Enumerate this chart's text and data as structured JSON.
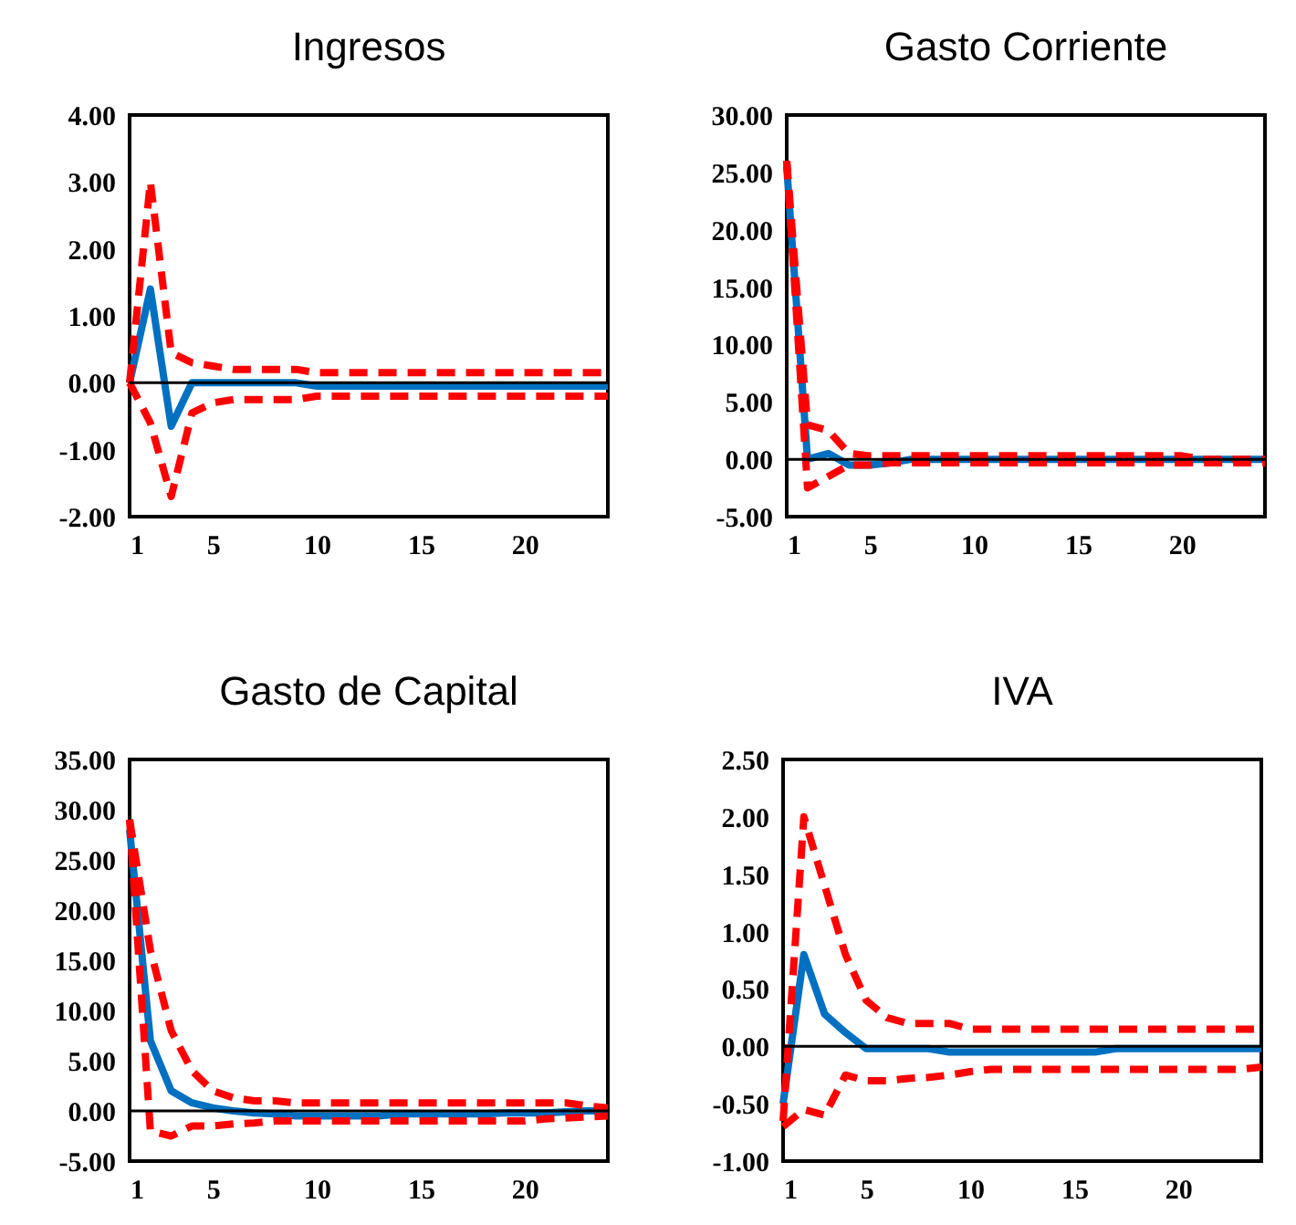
{
  "chart_data": [
    {
      "type": "line",
      "title": "Ingresos",
      "x": [
        1,
        2,
        3,
        4,
        5,
        6,
        7,
        8,
        9,
        10,
        11,
        12,
        13,
        14,
        15,
        16,
        17,
        18,
        19,
        20,
        21,
        22,
        23,
        24
      ],
      "xlim": [
        1,
        24
      ],
      "xticks": [
        1,
        5,
        10,
        15,
        20
      ],
      "ylim": [
        -2,
        4
      ],
      "yticks": [
        {
          "value": -2,
          "label": "-2.00"
        },
        {
          "value": -1,
          "label": "-1.00"
        },
        {
          "value": 0,
          "label": "0.00"
        },
        {
          "value": 1,
          "label": "1.00"
        },
        {
          "value": 2,
          "label": "2.00"
        },
        {
          "value": 3,
          "label": "3.00"
        },
        {
          "value": 4,
          "label": "4.00"
        }
      ],
      "series": [
        {
          "color": "#0070c0",
          "line_style": "solid",
          "values": [
            0,
            1.4,
            -0.65,
            0,
            0,
            0,
            0,
            0,
            0,
            -0.05,
            -0.05,
            -0.05,
            -0.05,
            -0.05,
            -0.05,
            -0.05,
            -0.05,
            -0.05,
            -0.05,
            -0.05,
            -0.05,
            -0.05,
            -0.05,
            -0.05
          ]
        },
        {
          "color": "#ff0000",
          "line_style": "dashed",
          "values": [
            0,
            3,
            0.45,
            0.3,
            0.25,
            0.2,
            0.2,
            0.2,
            0.2,
            0.15,
            0.15,
            0.15,
            0.15,
            0.15,
            0.15,
            0.15,
            0.15,
            0.15,
            0.15,
            0.15,
            0.15,
            0.15,
            0.15,
            0.15
          ]
        },
        {
          "color": "#ff0000",
          "line_style": "dashed",
          "values": [
            0,
            -0.6,
            -1.7,
            -0.45,
            -0.3,
            -0.25,
            -0.25,
            -0.25,
            -0.25,
            -0.2,
            -0.2,
            -0.2,
            -0.2,
            -0.2,
            -0.2,
            -0.2,
            -0.2,
            -0.2,
            -0.2,
            -0.2,
            -0.2,
            -0.2,
            -0.2,
            -0.2
          ]
        }
      ],
      "ref_lines": [
        {
          "axis": "y",
          "value": 0,
          "color": "#000000"
        }
      ]
    },
    {
      "type": "line",
      "title": "Gasto Corriente",
      "x": [
        1,
        2,
        3,
        4,
        5,
        6,
        7,
        8,
        9,
        10,
        11,
        12,
        13,
        14,
        15,
        16,
        17,
        18,
        19,
        20,
        21,
        22,
        23,
        24
      ],
      "xlim": [
        1,
        24
      ],
      "xticks": [
        1,
        5,
        10,
        15,
        20
      ],
      "ylim": [
        -5,
        30
      ],
      "yticks": [
        {
          "value": -5,
          "label": "-5.00"
        },
        {
          "value": 0,
          "label": "0.00"
        },
        {
          "value": 5,
          "label": "5.00"
        },
        {
          "value": 10,
          "label": "10.00"
        },
        {
          "value": 15,
          "label": "15.00"
        },
        {
          "value": 20,
          "label": "20.00"
        },
        {
          "value": 25,
          "label": "25.00"
        },
        {
          "value": 30,
          "label": "30.00"
        }
      ],
      "series": [
        {
          "color": "#0070c0",
          "line_style": "solid",
          "values": [
            25.5,
            0,
            0.5,
            -0.5,
            -0.5,
            -0.3,
            0,
            0,
            0,
            0,
            0,
            0,
            0,
            0,
            0,
            0,
            0,
            0,
            0,
            0,
            0,
            0,
            0,
            0
          ]
        },
        {
          "color": "#ff0000",
          "line_style": "dashed",
          "values": [
            26,
            3,
            2.5,
            0.5,
            0.3,
            0.3,
            0.3,
            0.3,
            0.3,
            0.3,
            0.3,
            0.3,
            0.3,
            0.3,
            0.3,
            0.3,
            0.3,
            0.3,
            0.3,
            0.3,
            0,
            0,
            0,
            0
          ]
        },
        {
          "color": "#ff0000",
          "line_style": "dashed",
          "values": [
            26,
            -2.5,
            -1.5,
            -0.5,
            -0.5,
            -0.3,
            -0.3,
            -0.3,
            -0.3,
            -0.3,
            -0.3,
            -0.3,
            -0.3,
            -0.3,
            -0.3,
            -0.3,
            -0.3,
            -0.3,
            -0.3,
            -0.3,
            -0.3,
            -0.3,
            -0.3,
            -0.3
          ]
        }
      ],
      "ref_lines": [
        {
          "axis": "y",
          "value": 0,
          "color": "#000000"
        }
      ]
    },
    {
      "type": "line",
      "title": "Gasto de Capital",
      "x": [
        1,
        2,
        3,
        4,
        5,
        6,
        7,
        8,
        9,
        10,
        11,
        12,
        13,
        14,
        15,
        16,
        17,
        18,
        19,
        20,
        21,
        22,
        23,
        24
      ],
      "xlim": [
        1,
        24
      ],
      "xticks": [
        1,
        5,
        10,
        15,
        20
      ],
      "ylim": [
        -5,
        35
      ],
      "yticks": [
        {
          "value": -5,
          "label": "-5.00"
        },
        {
          "value": 0,
          "label": "0.00"
        },
        {
          "value": 5,
          "label": "5.00"
        },
        {
          "value": 10,
          "label": "10.00"
        },
        {
          "value": 15,
          "label": "15.00"
        },
        {
          "value": 20,
          "label": "20.00"
        },
        {
          "value": 25,
          "label": "25.00"
        },
        {
          "value": 30,
          "label": "30.00"
        },
        {
          "value": 35,
          "label": "35.00"
        }
      ],
      "series": [
        {
          "color": "#0070c0",
          "line_style": "solid",
          "values": [
            28,
            7,
            2,
            0.8,
            0.3,
            0,
            -0.2,
            -0.3,
            -0.5,
            -0.5,
            -0.5,
            -0.5,
            -0.5,
            -0.3,
            -0.3,
            -0.3,
            -0.3,
            -0.3,
            -0.2,
            -0.2,
            -0.2,
            -0.1,
            0,
            0
          ]
        },
        {
          "color": "#ff0000",
          "line_style": "dashed",
          "values": [
            29,
            16,
            8,
            4,
            2,
            1.3,
            1,
            1,
            0.8,
            0.8,
            0.8,
            0.8,
            0.8,
            0.8,
            0.8,
            0.8,
            0.8,
            0.8,
            0.8,
            0.8,
            0.8,
            0.8,
            0.5,
            0.3
          ]
        },
        {
          "color": "#ff0000",
          "line_style": "dashed",
          "values": [
            29,
            -2,
            -2.5,
            -1.5,
            -1.5,
            -1.3,
            -1.2,
            -1,
            -1,
            -1,
            -1,
            -1,
            -1,
            -1,
            -1,
            -1,
            -1,
            -1,
            -1,
            -1,
            -0.8,
            -0.7,
            -0.6,
            -0.5
          ]
        }
      ],
      "ref_lines": [
        {
          "axis": "y",
          "value": 0,
          "color": "#000000"
        }
      ]
    },
    {
      "type": "line",
      "title": "IVA",
      "x": [
        1,
        2,
        3,
        4,
        5,
        6,
        7,
        8,
        9,
        10,
        11,
        12,
        13,
        14,
        15,
        16,
        17,
        18,
        19,
        20,
        21,
        22,
        23,
        24
      ],
      "xlim": [
        1,
        24
      ],
      "xticks": [
        1,
        5,
        10,
        15,
        20
      ],
      "ylim": [
        -1,
        2.5
      ],
      "yticks": [
        {
          "value": -1,
          "label": "-1.00"
        },
        {
          "value": -0.5,
          "label": "-0.50"
        },
        {
          "value": 0,
          "label": "0.00"
        },
        {
          "value": 0.5,
          "label": "0.50"
        },
        {
          "value": 1,
          "label": "1.00"
        },
        {
          "value": 1.5,
          "label": "1.50"
        },
        {
          "value": 2,
          "label": "2.00"
        },
        {
          "value": 2.5,
          "label": "2.50"
        }
      ],
      "series": [
        {
          "color": "#0070c0",
          "line_style": "solid",
          "values": [
            -0.5,
            0.8,
            0.28,
            0.12,
            -0.02,
            -0.02,
            -0.02,
            -0.02,
            -0.05,
            -0.05,
            -0.05,
            -0.05,
            -0.05,
            -0.05,
            -0.05,
            -0.05,
            -0.02,
            -0.02,
            -0.02,
            -0.02,
            -0.02,
            -0.02,
            -0.02,
            -0.02
          ]
        },
        {
          "color": "#ff0000",
          "line_style": "dashed",
          "values": [
            -0.65,
            2,
            1.4,
            0.8,
            0.4,
            0.25,
            0.2,
            0.2,
            0.2,
            0.15,
            0.15,
            0.15,
            0.15,
            0.15,
            0.15,
            0.15,
            0.15,
            0.15,
            0.15,
            0.15,
            0.15,
            0.15,
            0.15,
            0.15
          ]
        },
        {
          "color": "#ff0000",
          "line_style": "dashed",
          "values": [
            -0.7,
            -0.55,
            -0.6,
            -0.25,
            -0.3,
            -0.3,
            -0.28,
            -0.27,
            -0.25,
            -0.22,
            -0.2,
            -0.2,
            -0.2,
            -0.2,
            -0.2,
            -0.2,
            -0.2,
            -0.2,
            -0.2,
            -0.2,
            -0.2,
            -0.2,
            -0.2,
            -0.18
          ]
        }
      ],
      "ref_lines": [
        {
          "axis": "y",
          "value": 0,
          "color": "#000000"
        }
      ]
    }
  ]
}
